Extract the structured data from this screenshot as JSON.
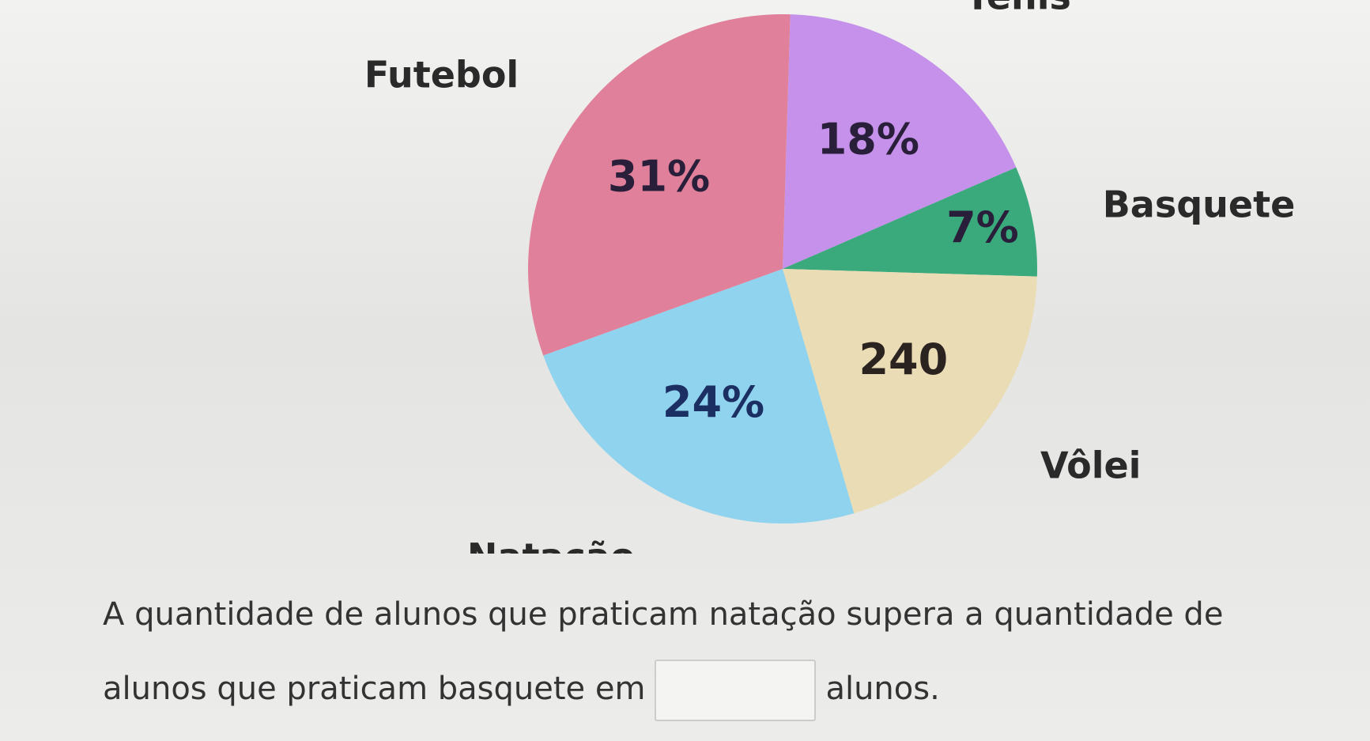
{
  "chart_data": {
    "type": "pie",
    "categories": [
      "Tênis",
      "Basquete",
      "Vôlei",
      "Natação",
      "Futebol"
    ],
    "values": [
      18,
      7,
      20,
      24,
      31
    ],
    "value_labels": [
      "18%",
      "7%",
      null,
      "24%",
      "31%"
    ],
    "counts": [
      null,
      null,
      240,
      null,
      null
    ],
    "colors": [
      "#c591ea",
      "#3aaa7c",
      "#eadcb4",
      "#8fd3ee",
      "#e0809a"
    ]
  },
  "question": {
    "before": "A quantidade de alunos que praticam natação supera a quantidade de alunos que praticam basquete em",
    "after": "alunos."
  }
}
